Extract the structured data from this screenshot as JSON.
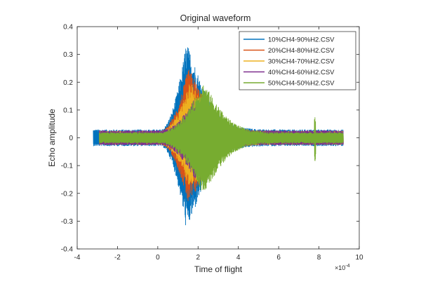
{
  "chart_data": {
    "type": "line",
    "title": "Original waveform",
    "xlabel": "Time of flight",
    "ylabel": "Echo amplitude",
    "x_exponent_label": "×10",
    "x_exponent_power": "-4",
    "xlim": [
      -4,
      10
    ],
    "ylim": [
      -0.4,
      0.4
    ],
    "xticks": [
      -4,
      -2,
      0,
      2,
      4,
      6,
      8,
      10
    ],
    "xtick_labels": [
      "-4",
      "-2",
      "0",
      "2",
      "4",
      "6",
      "8",
      "10"
    ],
    "yticks": [
      -0.4,
      -0.3,
      -0.2,
      -0.1,
      0,
      0.1,
      0.2,
      0.3,
      0.4
    ],
    "ytick_labels": [
      "-0.4",
      "-0.3",
      "-0.2",
      "-0.1",
      "0",
      "0.1",
      "0.2",
      "0.3",
      "0.4"
    ],
    "grid": false,
    "legend_position": "top-right",
    "series": [
      {
        "name": "10%CH4-90%H2.CSV",
        "color": "#0072BD",
        "x_start": -3.2,
        "x_end": 9.2,
        "peak_time": 1.4,
        "peak_amplitude": 0.34,
        "min_amplitude": -0.33,
        "baseline_amplitude": 0.03
      },
      {
        "name": "20%CH4-80%H2.CSV",
        "color": "#D95319",
        "x_start": -2.9,
        "x_end": 9.2,
        "peak_time": 1.5,
        "peak_amplitude": 0.25,
        "min_amplitude": -0.24,
        "baseline_amplitude": 0.025
      },
      {
        "name": "30%CH4-70%H2.CSV",
        "color": "#EDB120",
        "x_start": -2.9,
        "x_end": 9.2,
        "peak_time": 1.6,
        "peak_amplitude": 0.2,
        "min_amplitude": -0.19,
        "baseline_amplitude": 0.025
      },
      {
        "name": "40%CH4-60%H2.CSV",
        "color": "#7E2F8E",
        "x_start": -2.9,
        "x_end": 9.2,
        "peak_time": 1.8,
        "peak_amplitude": 0.14,
        "min_amplitude": -0.15,
        "baseline_amplitude": 0.027
      },
      {
        "name": "50%CH4-50%H2.CSV",
        "color": "#77AC30",
        "x_start": -2.9,
        "x_end": 9.2,
        "peak_time": 2.2,
        "peak_amplitude": 0.2,
        "min_amplitude": -0.2,
        "baseline_amplitude": 0.02,
        "spike_time": 7.8,
        "spike_amplitude": 0.08,
        "spike_min": -0.09
      }
    ]
  }
}
